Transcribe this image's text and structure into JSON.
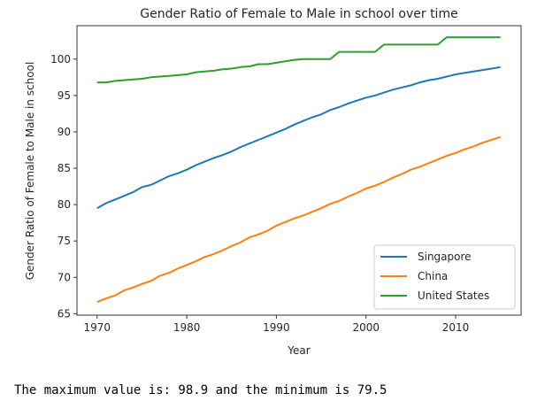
{
  "chart_data": {
    "type": "line",
    "title": "Gender Ratio of Female to Male in school over time",
    "xlabel": "Year",
    "ylabel": "Gender Ratio of Female to Male in school",
    "xlim": [
      1967.75,
      2017.3
    ],
    "ylim": [
      64.8,
      104.6
    ],
    "xticks": [
      1970,
      1980,
      1990,
      2000,
      2010
    ],
    "yticks": [
      65,
      70,
      75,
      80,
      85,
      90,
      95,
      100
    ],
    "grid": false,
    "legend_position": "lower-right",
    "x": [
      1970,
      1971,
      1972,
      1973,
      1974,
      1975,
      1976,
      1977,
      1978,
      1979,
      1980,
      1981,
      1982,
      1983,
      1984,
      1985,
      1986,
      1987,
      1988,
      1989,
      1990,
      1991,
      1992,
      1993,
      1994,
      1995,
      1996,
      1997,
      1998,
      1999,
      2000,
      2001,
      2002,
      2003,
      2004,
      2005,
      2006,
      2007,
      2008,
      2009,
      2010,
      2011,
      2012,
      2013,
      2014,
      2015
    ],
    "series": [
      {
        "name": "Singapore",
        "color": "#1f77b4",
        "values": [
          79.5,
          80.2,
          80.7,
          81.2,
          81.7,
          82.4,
          82.7,
          83.3,
          83.9,
          84.3,
          84.8,
          85.4,
          85.9,
          86.4,
          86.8,
          87.3,
          87.9,
          88.4,
          88.9,
          89.4,
          89.9,
          90.4,
          91.0,
          91.5,
          92.0,
          92.4,
          93.0,
          93.4,
          93.9,
          94.3,
          94.7,
          95.0,
          95.4,
          95.8,
          96.1,
          96.4,
          96.8,
          97.1,
          97.3,
          97.6,
          97.9,
          98.1,
          98.3,
          98.5,
          98.7,
          98.9
        ]
      },
      {
        "name": "China",
        "color": "#ff7f0e",
        "values": [
          66.6,
          67.1,
          67.5,
          68.2,
          68.6,
          69.1,
          69.5,
          70.2,
          70.6,
          71.2,
          71.7,
          72.2,
          72.8,
          73.2,
          73.7,
          74.3,
          74.8,
          75.5,
          75.9,
          76.4,
          77.1,
          77.6,
          78.1,
          78.5,
          79.0,
          79.5,
          80.1,
          80.5,
          81.1,
          81.6,
          82.2,
          82.6,
          83.1,
          83.7,
          84.2,
          84.8,
          85.2,
          85.7,
          86.2,
          86.7,
          87.1,
          87.6,
          88.0,
          88.5,
          88.9,
          89.3
        ]
      },
      {
        "name": "United States",
        "color": "#2ca02c",
        "values": [
          96.8,
          96.8,
          97.0,
          97.1,
          97.2,
          97.3,
          97.5,
          97.6,
          97.7,
          97.8,
          97.9,
          98.2,
          98.3,
          98.4,
          98.6,
          98.7,
          98.9,
          99.0,
          99.3,
          99.3,
          99.5,
          99.7,
          99.9,
          100.0,
          100.0,
          100.0,
          100.0,
          101.0,
          101.0,
          101.0,
          101.0,
          101.0,
          102.0,
          102.0,
          102.0,
          102.0,
          102.0,
          102.0,
          102.0,
          103.0,
          103.0,
          103.0,
          103.0,
          103.0,
          103.0,
          103.0
        ]
      }
    ]
  },
  "output": {
    "text": "The maximum value is: 98.9 and the minimum is 79.5"
  }
}
